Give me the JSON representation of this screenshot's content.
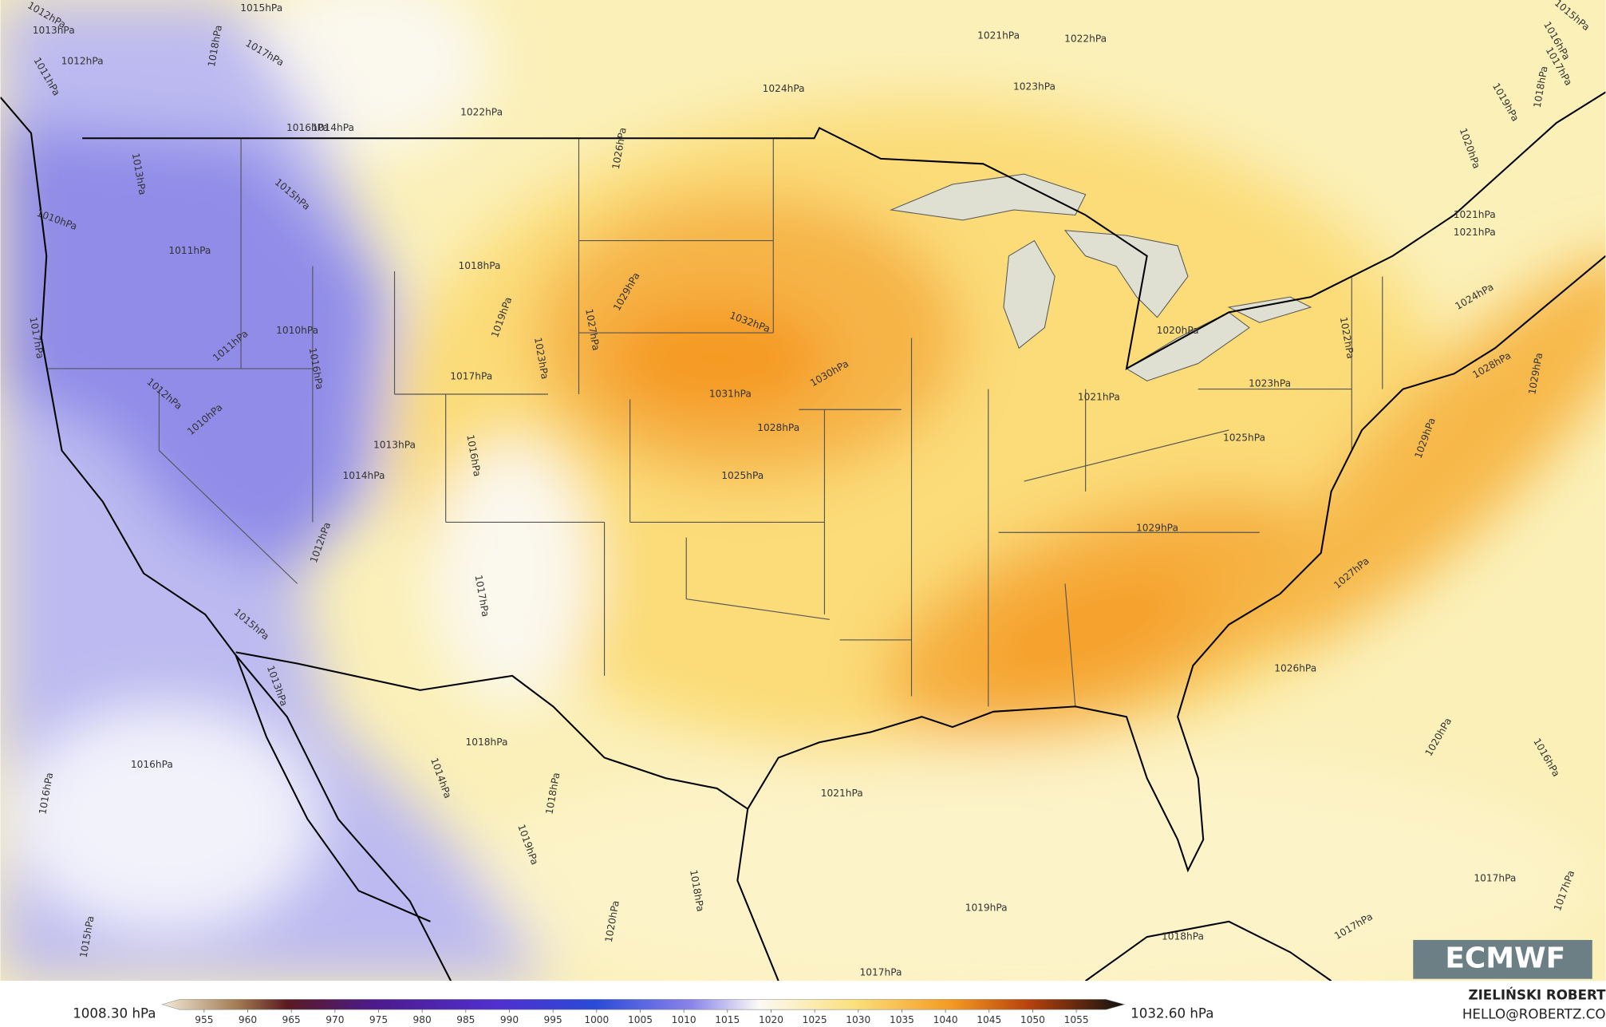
{
  "map": {
    "isobar_labels": [
      "1021hPa",
      "1022hPa",
      "1023hPa",
      "1024hPa",
      "1022hPa",
      "1016hPa",
      "1014hPa",
      "1026hPa",
      "1013hPa",
      "1015hPa",
      "1011hPa",
      "1018hPa",
      "1029hPa",
      "1019hPa",
      "1027hPa",
      "1032hPa",
      "1010hPa",
      "1011hPa",
      "1017hPa",
      "1023hPa",
      "1016hPa",
      "1017hPa",
      "1030hPa",
      "1031hPa",
      "1021hPa",
      "1020hPa",
      "1022hPa",
      "1023hPa",
      "1028hPa",
      "1029hPa",
      "1012hPa",
      "1010hPa",
      "1028hPa",
      "1013hPa",
      "1016hPa",
      "1014hPa",
      "1025hPa",
      "1025hPa",
      "1029hPa",
      "1029hPa",
      "1012hPa",
      "1027hPa",
      "1017hPa",
      "1015hPa",
      "1026hPa",
      "1013hPa",
      "1020hPa",
      "1016hPa",
      "1018hPa",
      "1016hPa",
      "1016hPa",
      "1014hPa",
      "1018hPa",
      "1021hPa",
      "1019hPa",
      "1018hPa",
      "1020hPa",
      "1019hPa",
      "1017hPa",
      "1017hPa",
      "1017hPa",
      "1018hPa",
      "1017hPa",
      "1015hPa",
      "1015hPa",
      "1016hPa",
      "1017hPa",
      "1018hPa",
      "1019hPa",
      "1020hPa",
      "1021hPa",
      "1021hPa",
      "1024hPa",
      "1015hPa",
      "1017hPa",
      "1018hPa",
      "1012hPa",
      "1013hPa",
      "1012hPa",
      "1011hPa",
      "1010hPa"
    ],
    "logo": "ECMWF"
  },
  "colorbar": {
    "min_label": "1008.30 hPa",
    "max_label": "1032.60 hPa",
    "ticks": [
      955,
      960,
      965,
      970,
      975,
      980,
      985,
      990,
      995,
      1000,
      1005,
      1010,
      1015,
      1020,
      1025,
      1030,
      1035,
      1040,
      1045,
      1050,
      1055
    ]
  },
  "credit": {
    "author": "ZIELIŃSKI ROBERT",
    "email": "HELLO@ROBERTZ.CO"
  }
}
